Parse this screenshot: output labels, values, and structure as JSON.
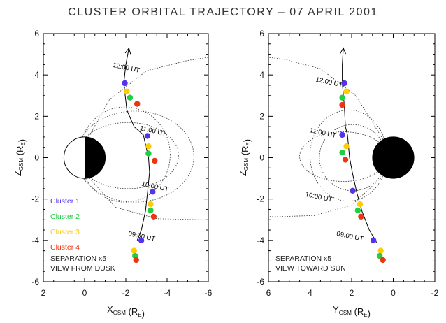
{
  "title": "CLUSTER ORBITAL TRAJECTORY – 07 APRIL 2001",
  "chart_data": [
    {
      "type": "scatter",
      "view": "view-from-dusk",
      "xlabel": "X",
      "xlabel_sub": "GSM",
      "ylabel": "Z",
      "ylabel_sub": "GSM",
      "unit": "(R",
      "unit_sub": "E",
      "unit_close": ")",
      "xlim": [
        2,
        -6
      ],
      "ylim": [
        -6,
        6
      ],
      "xticks": [
        "2",
        "0",
        "-2",
        "-4",
        "-6"
      ],
      "yticks": [
        "-6",
        "-4",
        "-2",
        "0",
        "2",
        "4",
        "6"
      ],
      "earth": "half",
      "orbit": {
        "x": [
          -2.15,
          -2.0,
          -1.9,
          -2.05,
          -2.4,
          -2.85,
          -3.1,
          -3.15,
          -3.05,
          -2.95,
          -2.75,
          -2.55
        ],
        "z": [
          5.3,
          4.5,
          3.6,
          2.3,
          1.5,
          1.1,
          0.0,
          -0.7,
          -1.7,
          -2.6,
          -3.5,
          -4.0
        ]
      },
      "time_labels": [
        {
          "text": "12:00 UT",
          "x": -2.0,
          "z": 4.25
        },
        {
          "text": "11:00 UT",
          "x": -3.3,
          "z": 1.2
        },
        {
          "text": "10:00 UT",
          "x": -3.4,
          "z": -1.5
        },
        {
          "text": "09:00 UT",
          "x": -2.75,
          "z": -3.9
        }
      ],
      "spacecraft_groups": [
        [
          {
            "sc": 1,
            "x": -1.95,
            "z": 3.6
          },
          {
            "sc": 3,
            "x": -2.05,
            "z": 3.2
          },
          {
            "sc": 2,
            "x": -2.2,
            "z": 2.9
          },
          {
            "sc": 4,
            "x": -2.55,
            "z": 2.6
          }
        ],
        [
          {
            "sc": 1,
            "x": -3.05,
            "z": 1.05
          },
          {
            "sc": 3,
            "x": -3.1,
            "z": 0.55
          },
          {
            "sc": 2,
            "x": -3.1,
            "z": 0.2
          },
          {
            "sc": 4,
            "x": -3.4,
            "z": -0.15
          }
        ],
        [
          {
            "sc": 1,
            "x": -3.3,
            "z": -1.65
          },
          {
            "sc": 3,
            "x": -3.2,
            "z": -2.25
          },
          {
            "sc": 2,
            "x": -3.2,
            "z": -2.55
          },
          {
            "sc": 4,
            "x": -3.35,
            "z": -2.85
          }
        ],
        [
          {
            "sc": 1,
            "x": -2.75,
            "z": -4.0
          },
          {
            "sc": 3,
            "x": -2.4,
            "z": -4.5
          },
          {
            "sc": 2,
            "x": -2.45,
            "z": -4.75
          },
          {
            "sc": 4,
            "x": -2.5,
            "z": -4.95
          }
        ]
      ],
      "field_lines": [
        {
          "loop": false,
          "x": [
            -0.15,
            -1.2,
            -3.0,
            -5.0,
            -6.0
          ],
          "z": [
            0.9,
            2.8,
            4.2,
            4.7,
            4.85
          ]
        },
        {
          "loop": false,
          "x": [
            -0.15,
            -1.5,
            -3.5,
            -5.5,
            -6.0
          ],
          "z": [
            -0.9,
            -2.4,
            -2.95,
            -3.0,
            -3.0
          ]
        },
        {
          "loop": true,
          "cx": -1.95,
          "cz": 0.15,
          "rx": 2.2,
          "rz": 2.3
        },
        {
          "loop": true,
          "cx": -2.45,
          "cz": 0.05,
          "rx": 2.85,
          "rz": 2.2
        },
        {
          "loop": true,
          "cx": -2.1,
          "cz": 0.1,
          "rx": 2.45,
          "rz": 1.6
        }
      ],
      "notes": [
        "SEPARATION x5",
        "VIEW FROM DUSK"
      ],
      "legend": true
    },
    {
      "type": "scatter",
      "view": "view-toward-sun",
      "xlabel": "Y",
      "xlabel_sub": "GSM",
      "ylabel": "Z",
      "ylabel_sub": "GSM",
      "unit": "(R",
      "unit_sub": "E",
      "unit_close": ")",
      "xlim": [
        6,
        -2
      ],
      "ylim": [
        -6,
        6
      ],
      "xticks": [
        "6",
        "4",
        "2",
        "0",
        "-2"
      ],
      "yticks": [
        "-6",
        "-4",
        "-2",
        "0",
        "2",
        "4",
        "6"
      ],
      "earth": "full",
      "orbit": {
        "x": [
          2.4,
          2.45,
          2.45,
          2.35,
          2.3,
          2.2,
          2.1,
          1.95,
          1.75,
          1.5,
          1.15,
          0.8
        ],
        "z": [
          5.3,
          4.5,
          3.6,
          2.5,
          1.5,
          1.1,
          0.0,
          -0.8,
          -1.7,
          -2.6,
          -3.5,
          -4.1
        ]
      },
      "time_labels": [
        {
          "text": "12:00 UT",
          "x": 3.1,
          "z": 3.55
        },
        {
          "text": "11:00 UT",
          "x": 3.4,
          "z": 1.1
        },
        {
          "text": "10:00 UT",
          "x": 3.6,
          "z": -2.0
        },
        {
          "text": "09:00 UT",
          "x": 2.1,
          "z": -3.9
        }
      ],
      "spacecraft_groups": [
        [
          {
            "sc": 1,
            "x": 2.35,
            "z": 3.6
          },
          {
            "sc": 3,
            "x": 2.25,
            "z": 3.2
          },
          {
            "sc": 2,
            "x": 2.45,
            "z": 2.9
          },
          {
            "sc": 4,
            "x": 2.45,
            "z": 2.55
          }
        ],
        [
          {
            "sc": 1,
            "x": 2.45,
            "z": 1.1
          },
          {
            "sc": 3,
            "x": 2.25,
            "z": 0.55
          },
          {
            "sc": 2,
            "x": 2.45,
            "z": 0.25
          },
          {
            "sc": 4,
            "x": 2.3,
            "z": -0.1
          }
        ],
        [
          {
            "sc": 1,
            "x": 1.95,
            "z": -1.6
          },
          {
            "sc": 3,
            "x": 1.6,
            "z": -2.25
          },
          {
            "sc": 2,
            "x": 1.7,
            "z": -2.55
          },
          {
            "sc": 4,
            "x": 1.55,
            "z": -2.85
          }
        ],
        [
          {
            "sc": 1,
            "x": 0.95,
            "z": -4.0
          },
          {
            "sc": 3,
            "x": 0.6,
            "z": -4.5
          },
          {
            "sc": 2,
            "x": 0.65,
            "z": -4.75
          },
          {
            "sc": 4,
            "x": 0.5,
            "z": -4.95
          }
        ]
      ],
      "field_lines": [
        {
          "loop": false,
          "x": [
            0.5,
            1.8,
            3.5,
            5.2,
            6.0
          ],
          "z": [
            0.9,
            3.0,
            4.3,
            4.75,
            4.85
          ]
        },
        {
          "loop": false,
          "x": [
            0.5,
            2.0,
            3.8,
            5.5,
            6.0
          ],
          "z": [
            -0.9,
            -2.3,
            -2.8,
            -2.85,
            -2.85
          ]
        },
        {
          "loop": true,
          "cx": 2.15,
          "cz": 0.1,
          "rx": 1.85,
          "rz": 2.2
        },
        {
          "loop": true,
          "cx": 1.95,
          "cz": 0.0,
          "rx": 1.6,
          "rz": 1.6
        },
        {
          "loop": true,
          "cx": 2.4,
          "cz": 0.05,
          "rx": 2.1,
          "rz": 1.2
        }
      ],
      "notes": [
        "SEPARATION x5",
        "VIEW TOWARD SUN"
      ],
      "legend": false
    }
  ],
  "legend": [
    {
      "sc": 1,
      "label": "Cluster 1",
      "color": "#5533ee"
    },
    {
      "sc": 2,
      "label": "Cluster 2",
      "color": "#22cc44"
    },
    {
      "sc": 3,
      "label": "Cluster 3",
      "color": "#ffcc00"
    },
    {
      "sc": 4,
      "label": "Cluster 4",
      "color": "#ee3311"
    }
  ]
}
